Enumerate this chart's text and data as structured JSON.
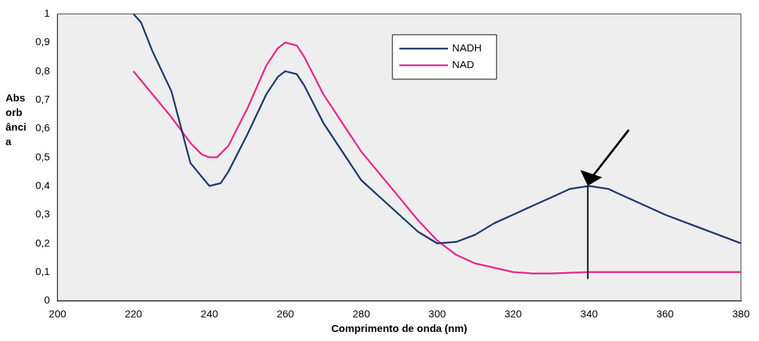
{
  "chart_data": {
    "type": "line",
    "xlabel": "Comprimento de onda (nm)",
    "ylabel": "Absorbância",
    "xlim": [
      200,
      380
    ],
    "xticks": [
      200,
      220,
      240,
      260,
      280,
      300,
      320,
      340,
      360,
      380
    ],
    "ylim": [
      0,
      1
    ],
    "yticks": [
      0,
      {
        "value": 0.1,
        "label": "0,1"
      },
      {
        "value": 0.2,
        "label": "0,2"
      },
      {
        "value": 0.3,
        "label": "0,3"
      },
      {
        "value": 0.4,
        "label": "0,4"
      },
      {
        "value": 0.5,
        "label": "0,5"
      },
      {
        "value": 0.6,
        "label": "0,6"
      },
      {
        "value": 0.7,
        "label": "0,7"
      },
      {
        "value": 0.8,
        "label": "0,8"
      },
      {
        "value": 0.9,
        "label": "0,9"
      },
      1
    ],
    "grid": false,
    "legend": "top",
    "marker": "none",
    "line_style": "solid",
    "series": [
      {
        "name": "NADH",
        "color": "#1f3a6e",
        "x": [
          220,
          222,
          225,
          230,
          235,
          240,
          243,
          245,
          250,
          255,
          258,
          260,
          263,
          265,
          270,
          275,
          280,
          285,
          290,
          295,
          300,
          305,
          310,
          315,
          320,
          325,
          330,
          335,
          340,
          345,
          350,
          355,
          360,
          370,
          380
        ],
        "values": [
          1.0,
          0.97,
          0.87,
          0.73,
          0.48,
          0.4,
          0.41,
          0.45,
          0.58,
          0.72,
          0.78,
          0.8,
          0.79,
          0.75,
          0.62,
          0.52,
          0.42,
          0.36,
          0.3,
          0.24,
          0.2,
          0.205,
          0.23,
          0.27,
          0.3,
          0.33,
          0.36,
          0.39,
          0.4,
          0.39,
          0.36,
          0.33,
          0.3,
          0.25,
          0.2
        ]
      },
      {
        "name": "NAD",
        "color": "#e8288c",
        "x": [
          220,
          225,
          230,
          235,
          238,
          240,
          242,
          245,
          250,
          255,
          258,
          260,
          263,
          265,
          270,
          275,
          280,
          285,
          290,
          295,
          300,
          305,
          310,
          315,
          320,
          325,
          330,
          340,
          380
        ],
        "values": [
          0.8,
          0.72,
          0.64,
          0.55,
          0.51,
          0.5,
          0.5,
          0.54,
          0.67,
          0.82,
          0.88,
          0.9,
          0.89,
          0.85,
          0.72,
          0.62,
          0.52,
          0.44,
          0.36,
          0.28,
          0.21,
          0.16,
          0.13,
          0.115,
          0.1,
          0.095,
          0.095,
          0.1,
          0.1
        ]
      }
    ]
  }
}
